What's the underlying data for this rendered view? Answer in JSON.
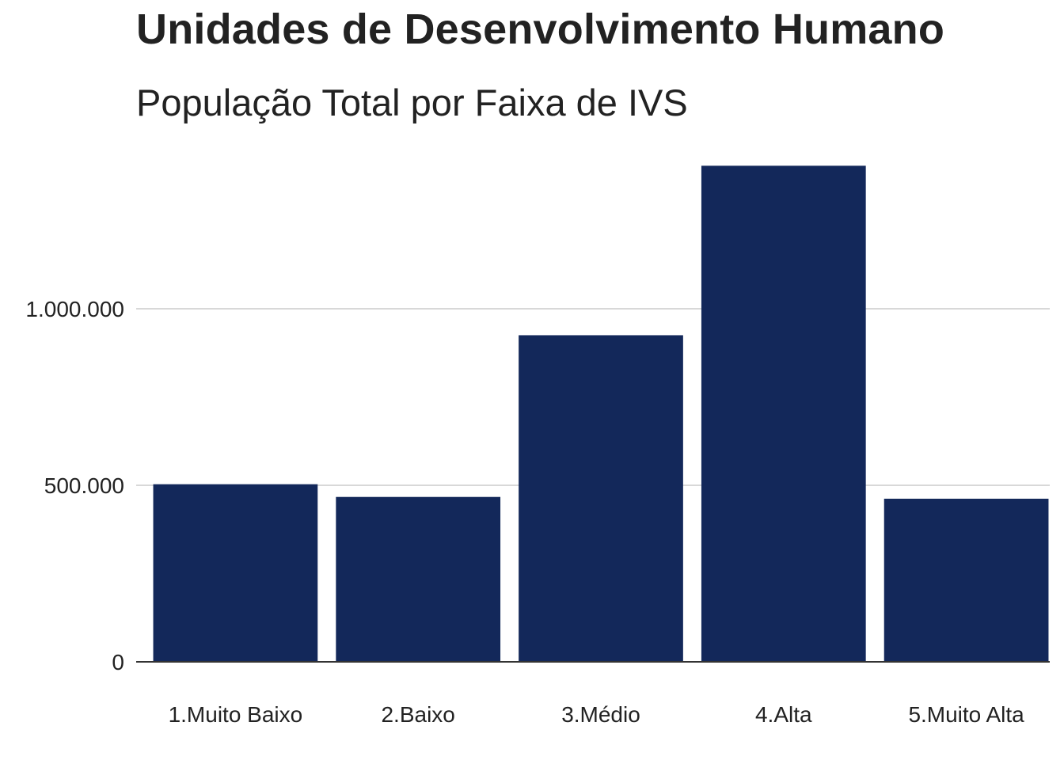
{
  "title": "Unidades de Desenvolvimento Humano",
  "subtitle": "População Total por Faixa de IVS",
  "chart_data": {
    "type": "bar",
    "categories": [
      "1.Muito Baixo",
      "2.Baixo",
      "3.Médio",
      "4.Alta",
      "5.Muito Alta"
    ],
    "values": [
      503000,
      467000,
      925000,
      1405000,
      462000
    ],
    "xlabel": "",
    "ylabel": "",
    "ylim": [
      0,
      1500000
    ],
    "yticks": [
      0,
      500000,
      1000000
    ],
    "ytick_labels": [
      "0",
      "500.000",
      "1.000.000"
    ],
    "grid": "horizontal",
    "bar_color": "#13285a",
    "gridline_color": "#cccccc",
    "baseline_color": "#333333"
  }
}
